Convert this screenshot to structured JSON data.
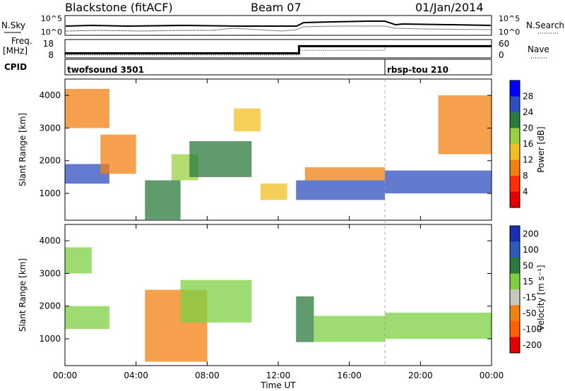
{
  "header": {
    "station": "Blackstone (fitACF)",
    "beam": "Beam 07",
    "date": "01/Jan/2014"
  },
  "chart_data": [
    {
      "type": "line",
      "panel": "noise",
      "left_label": "N.Sky",
      "right_label": "N.Search",
      "left_ticks": [
        "10^5",
        "10^0"
      ],
      "right_ticks": [
        "10^5",
        "10^0"
      ]
    },
    {
      "type": "line",
      "panel": "frequency",
      "left_label": "Freq.",
      "left_unit": "[MHz]",
      "right_label": "Nave",
      "left_ticks": [
        "18",
        "8"
      ],
      "right_ticks": [
        "60",
        "0"
      ],
      "x": [
        "00:00",
        "13:10",
        "13:10",
        "18:00",
        "18:00",
        "24:00"
      ],
      "freq_mhz": [
        10.5,
        10.5,
        14.4,
        14.4,
        14.4,
        14.4
      ],
      "nave": [
        10,
        10,
        25,
        25,
        40,
        40
      ]
    },
    {
      "type": "table",
      "panel": "cpid",
      "label": "CPID",
      "segments": [
        {
          "name": "twofsound 3501",
          "start": "00:00",
          "end": "18:00"
        },
        {
          "name": "rbsp-tou 210",
          "start": "18:00",
          "end": "24:00"
        }
      ]
    },
    {
      "type": "heatmap",
      "panel": "power",
      "ylabel": "Slant Range [km]",
      "ylim": [
        180,
        4500
      ],
      "y_ticks": [
        "1000",
        "2000",
        "3000",
        "4000"
      ],
      "colorbar_label": "Power [dB]",
      "colorbar_ticks": [
        "4",
        "8",
        "12",
        "16",
        "20",
        "24",
        "28"
      ],
      "colors": [
        "#0000ff",
        "#2d4fbf",
        "#2b7a3e",
        "#9bd040",
        "#f0c020",
        "#f08010",
        "#ff3000",
        "#e00000"
      ],
      "bands": [
        {
          "t0": 0.0,
          "t1": 2.5,
          "r0": 1300,
          "r1": 1900,
          "level": 24
        },
        {
          "t0": 0.0,
          "t1": 2.5,
          "r0": 3000,
          "r1": 4200,
          "level": 8
        },
        {
          "t0": 2.0,
          "t1": 4.0,
          "r0": 1600,
          "r1": 2800,
          "level": 8
        },
        {
          "t0": 4.5,
          "t1": 6.5,
          "r0": 200,
          "r1": 1400,
          "level": 20
        },
        {
          "t0": 6.0,
          "t1": 7.5,
          "r0": 1400,
          "r1": 2200,
          "level": 16
        },
        {
          "t0": 7.0,
          "t1": 10.5,
          "r0": 1500,
          "r1": 2600,
          "level": 20
        },
        {
          "t0": 9.5,
          "t1": 11.0,
          "r0": 2900,
          "r1": 3600,
          "level": 12
        },
        {
          "t0": 11.0,
          "t1": 12.5,
          "r0": 800,
          "r1": 1300,
          "level": 12
        },
        {
          "t0": 13.0,
          "t1": 18.0,
          "r0": 800,
          "r1": 1400,
          "level": 24
        },
        {
          "t0": 13.5,
          "t1": 18.0,
          "r0": 1400,
          "r1": 1800,
          "level": 8
        },
        {
          "t0": 18.0,
          "t1": 24.0,
          "r0": 1000,
          "r1": 1700,
          "level": 24
        },
        {
          "t0": 21.0,
          "t1": 24.0,
          "r0": 2200,
          "r1": 4000,
          "level": 8
        }
      ]
    },
    {
      "type": "heatmap",
      "panel": "velocity",
      "ylabel": "Slant Range [km]",
      "xlabel": "Time UT",
      "ylim": [
        180,
        4500
      ],
      "y_ticks": [
        "1000",
        "2000",
        "3000",
        "4000"
      ],
      "x_ticks": [
        "00:00",
        "04:00",
        "08:00",
        "12:00",
        "16:00",
        "20:00",
        "00:00"
      ],
      "colorbar_label": "Velocity [m s⁻¹]",
      "colorbar_ticks": [
        "200",
        "100",
        "50",
        "15",
        "-15",
        "-50",
        "-100",
        "-200"
      ],
      "colors": [
        "#1b2fb0",
        "#2c5cb8",
        "#2b7a3e",
        "#7cd040",
        "#c8c8c0",
        "#f08010",
        "#ff6000",
        "#e00000"
      ],
      "bands": [
        {
          "t0": 0.0,
          "t1": 2.5,
          "r0": 1300,
          "r1": 2000,
          "level": 0
        },
        {
          "t0": 0.0,
          "t1": 1.5,
          "r0": 3000,
          "r1": 3800,
          "level": 0
        },
        {
          "t0": 4.5,
          "t1": 8.0,
          "r0": 300,
          "r1": 2500,
          "level": -50
        },
        {
          "t0": 6.5,
          "t1": 10.5,
          "r0": 1500,
          "r1": 2800,
          "level": 0
        },
        {
          "t0": 13.0,
          "t1": 14.0,
          "r0": 900,
          "r1": 2300,
          "level": 50
        },
        {
          "t0": 14.0,
          "t1": 18.0,
          "r0": 900,
          "r1": 1700,
          "level": 0
        },
        {
          "t0": 18.0,
          "t1": 24.0,
          "r0": 1000,
          "r1": 1800,
          "level": 0
        }
      ]
    }
  ]
}
